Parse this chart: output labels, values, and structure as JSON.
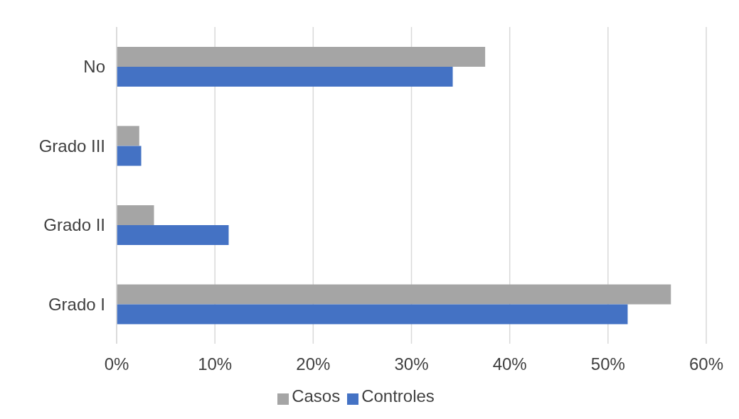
{
  "chart_data": {
    "type": "bar",
    "orientation": "horizontal",
    "categories": [
      "No",
      "Grado III",
      "Grado II",
      "Grado I"
    ],
    "series": [
      {
        "name": "Casos",
        "color": "#a5a5a5",
        "values": [
          37.5,
          2.3,
          3.8,
          56.4
        ]
      },
      {
        "name": "Controles",
        "color": "#4472c4",
        "values": [
          34.2,
          2.5,
          11.4,
          52.0
        ]
      }
    ],
    "xlim": [
      0,
      60
    ],
    "xticks": [
      {
        "value": 0,
        "label": "0%"
      },
      {
        "value": 10,
        "label": "10%"
      },
      {
        "value": 20,
        "label": "20%"
      },
      {
        "value": 30,
        "label": "30%"
      },
      {
        "value": 40,
        "label": "40%"
      },
      {
        "value": 50,
        "label": "50%"
      },
      {
        "value": 60,
        "label": "60%"
      }
    ],
    "grid": "x",
    "legend": "bottom"
  }
}
